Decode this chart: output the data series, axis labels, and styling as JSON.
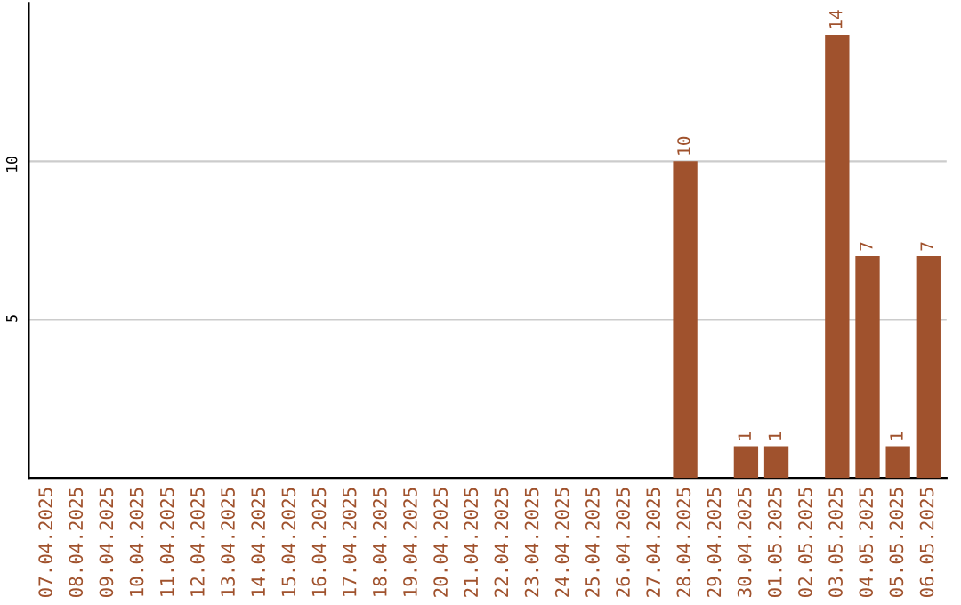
{
  "chart_data": {
    "type": "bar",
    "categories": [
      "07.04.2025",
      "08.04.2025",
      "09.04.2025",
      "10.04.2025",
      "11.04.2025",
      "12.04.2025",
      "13.04.2025",
      "14.04.2025",
      "15.04.2025",
      "16.04.2025",
      "17.04.2025",
      "18.04.2025",
      "19.04.2025",
      "20.04.2025",
      "21.04.2025",
      "22.04.2025",
      "23.04.2025",
      "24.04.2025",
      "25.04.2025",
      "26.04.2025",
      "27.04.2025",
      "28.04.2025",
      "29.04.2025",
      "30.04.2025",
      "01.05.2025",
      "02.05.2025",
      "03.05.2025",
      "04.05.2025",
      "05.05.2025",
      "06.05.2025"
    ],
    "values": [
      0,
      0,
      0,
      0,
      0,
      0,
      0,
      0,
      0,
      0,
      0,
      0,
      0,
      0,
      0,
      0,
      0,
      0,
      0,
      0,
      0,
      10,
      0,
      1,
      1,
      0,
      14,
      7,
      1,
      7
    ],
    "value_labels": [
      null,
      null,
      null,
      null,
      null,
      null,
      null,
      null,
      null,
      null,
      null,
      null,
      null,
      null,
      null,
      null,
      null,
      null,
      null,
      null,
      null,
      "10",
      null,
      "1",
      "1",
      null,
      "14",
      "7",
      "1",
      "7"
    ],
    "color": "#a0522d",
    "ylim": [
      0,
      15
    ],
    "yticks": [
      5,
      10
    ],
    "grid": "y"
  }
}
